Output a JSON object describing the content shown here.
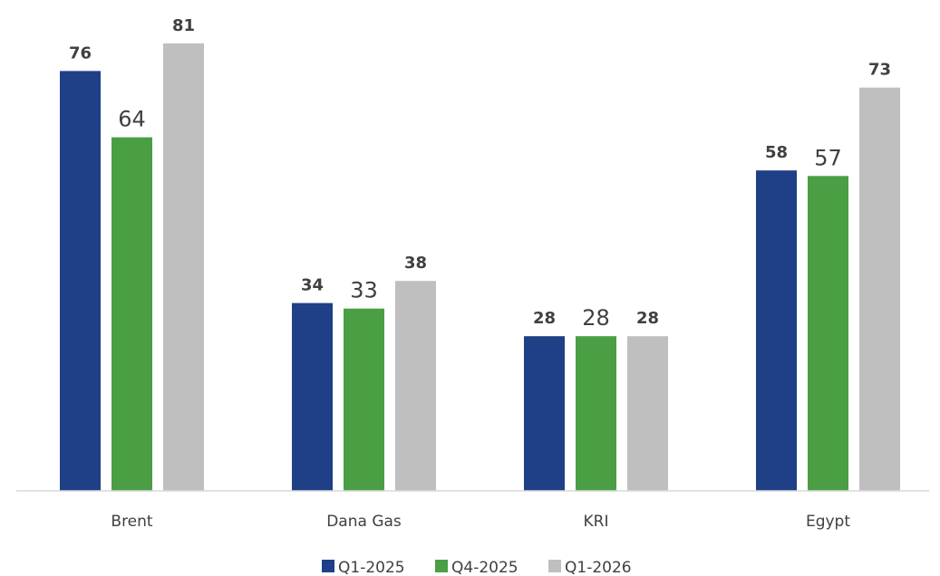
{
  "chart_data": {
    "type": "bar",
    "categories": [
      "Brent",
      "Dana Gas",
      "KRI",
      "Egypt"
    ],
    "series": [
      {
        "name": "Q1-2025",
        "color": "#1F3F87",
        "values": [
          76,
          34,
          28,
          58
        ],
        "label_style": "bold"
      },
      {
        "name": "Q4-2025",
        "color": "#4A9F45",
        "values": [
          64,
          33,
          28,
          57
        ],
        "label_style": "light"
      },
      {
        "name": "Q1-2026",
        "color": "#BFBFBF",
        "values": [
          81,
          38,
          28,
          73
        ],
        "label_style": "bold"
      }
    ],
    "title": "",
    "xlabel": "",
    "ylabel": "",
    "ylim": [
      0,
      85
    ],
    "grid": false,
    "legend_position": "bottom",
    "axis_color": "#D9D9D9"
  }
}
